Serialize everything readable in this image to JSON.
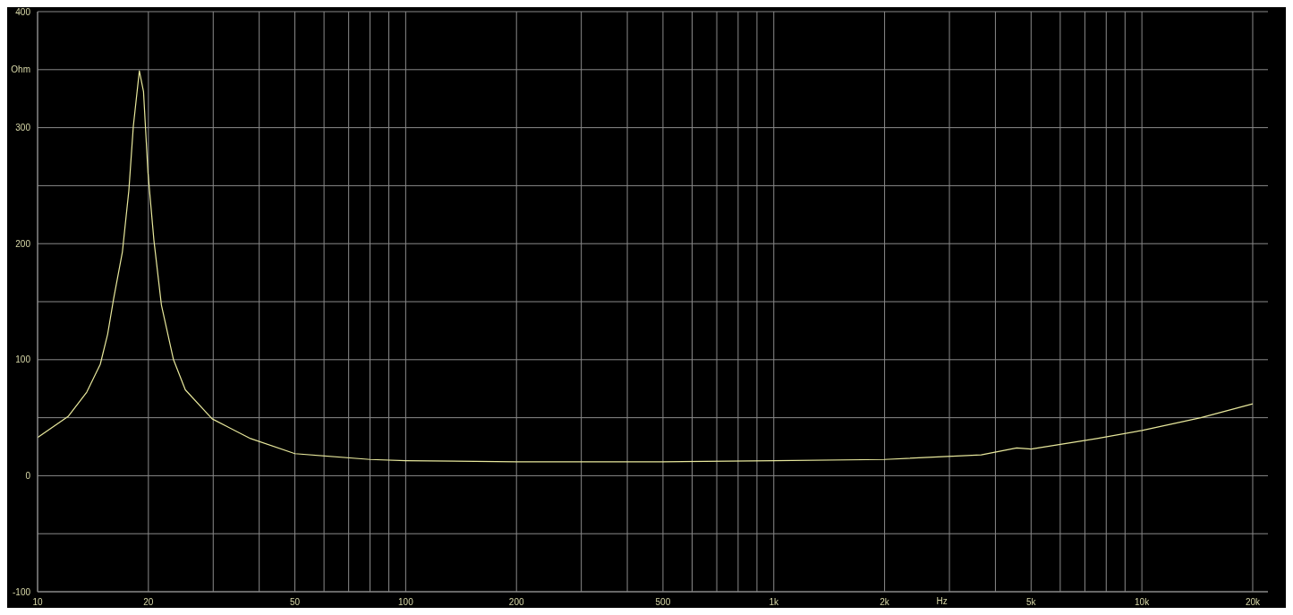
{
  "chart_data": {
    "type": "line",
    "xlabel": "Hz",
    "log": "x",
    "grid": true,
    "marker": "none",
    "line_style": "solid",
    "x": [
      10,
      12.1,
      13.6,
      14.8,
      15.5,
      16.1,
      17.0,
      17.7,
      18.2,
      18.9,
      19.4,
      19.95,
      20.7,
      21.7,
      23.4,
      25.2,
      29.8,
      37.9,
      50,
      80,
      100,
      200,
      500,
      1000,
      2000,
      3660,
      4570,
      5000,
      7545,
      10000,
      14450,
      20000
    ],
    "series": [
      {
        "color": "#e8e89c",
        "values": [
          33,
          51,
          72,
          96,
          122,
          153,
          193,
          246,
          301,
          349,
          331,
          261,
          203,
          147,
          100,
          74,
          49,
          32,
          19,
          14,
          13,
          12,
          12,
          13,
          14,
          18,
          24,
          23,
          32,
          39,
          50,
          62
        ]
      }
    ],
    "xlim": [
      10,
      22000
    ],
    "xticks": [
      10,
      20,
      {
        "value": 30,
        "label": null
      },
      {
        "value": 40,
        "label": null
      },
      50,
      {
        "value": 60,
        "label": null
      },
      {
        "value": 70,
        "label": null
      },
      {
        "value": 80,
        "label": null
      },
      {
        "value": 90,
        "label": null
      },
      100,
      200,
      {
        "value": 300,
        "label": null
      },
      {
        "value": 400,
        "label": null
      },
      500,
      {
        "value": 600,
        "label": null
      },
      {
        "value": 700,
        "label": null
      },
      {
        "value": 800,
        "label": null
      },
      {
        "value": 900,
        "label": null
      },
      {
        "value": 1000,
        "label": "1k"
      },
      {
        "value": 2000,
        "label": "2k"
      },
      {
        "value": 3000,
        "label": null
      },
      {
        "value": 4000,
        "label": null
      },
      {
        "value": 5000,
        "label": "5k"
      },
      {
        "value": 6000,
        "label": null
      },
      {
        "value": 7000,
        "label": null
      },
      {
        "value": 8000,
        "label": null
      },
      {
        "value": 9000,
        "label": null
      },
      {
        "value": 10000,
        "label": "10k"
      },
      {
        "value": 20000,
        "label": "20k"
      }
    ],
    "ylim": [
      -100,
      400
    ],
    "yticks": [
      -100,
      {
        "value": -50,
        "label": null
      },
      0,
      {
        "value": 50,
        "label": null
      },
      100,
      {
        "value": 150,
        "label": null
      },
      200,
      {
        "value": 250,
        "label": null
      },
      300,
      {
        "value": 350,
        "label": "Ohm"
      },
      400
    ]
  }
}
